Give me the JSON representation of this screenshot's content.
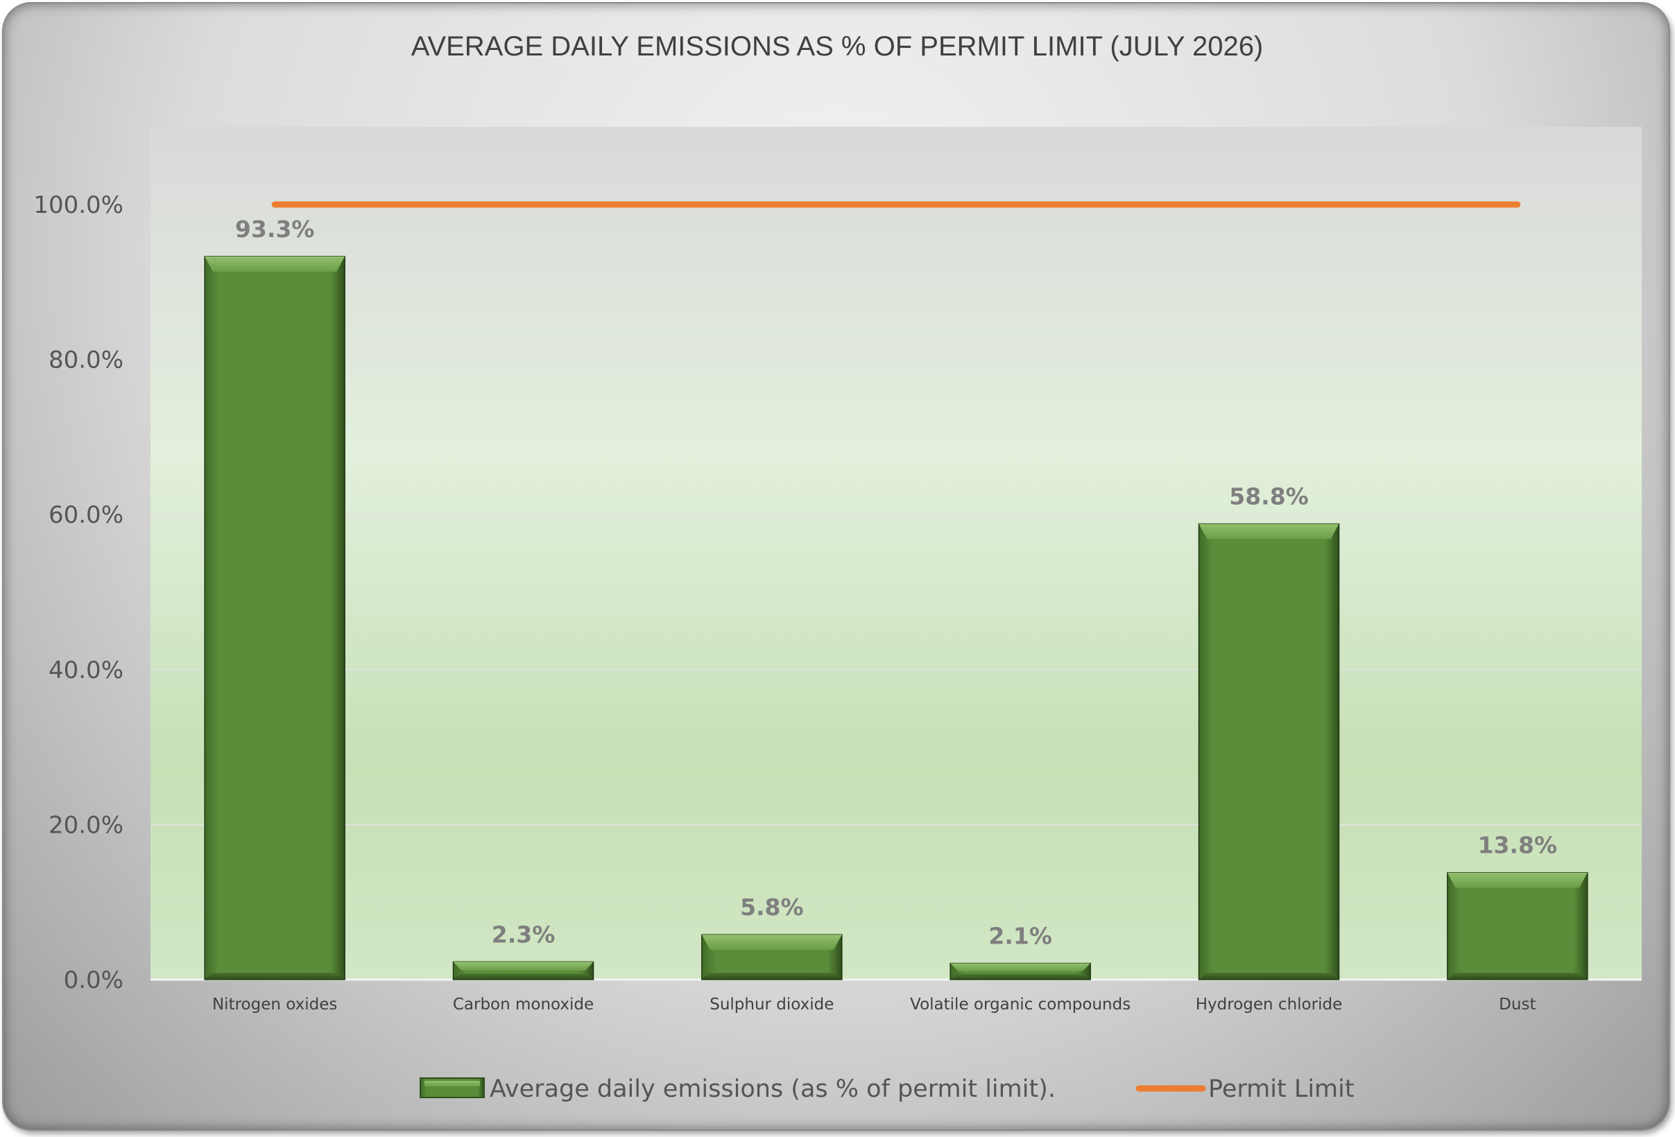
{
  "chart_data": {
    "type": "bar",
    "title": "AVERAGE DAILY EMISSIONS AS % OF PERMIT LIMIT (JULY 2026)",
    "categories": [
      "Nitrogen oxides",
      "Carbon monoxide",
      "Sulphur dioxide",
      "Volatile organic compounds",
      "Hydrogen chloride",
      "Dust"
    ],
    "series": [
      {
        "name": "Average daily emissions (as % of permit limit).",
        "type": "bar",
        "values": [
          93.3,
          2.3,
          5.8,
          2.1,
          58.8,
          13.8
        ],
        "data_labels": [
          "93.3%",
          "2.3%",
          "5.8%",
          "2.1%",
          "58.8%",
          "13.8%"
        ],
        "color": "#5b8c3a"
      },
      {
        "name": "Permit Limit",
        "type": "line",
        "values": [
          100,
          100,
          100,
          100,
          100,
          100
        ],
        "color": "#ed7d31"
      }
    ],
    "y_ticks": [
      "0.0%",
      "20.0%",
      "40.0%",
      "60.0%",
      "80.0%",
      "100.0%"
    ],
    "y_tick_values": [
      0,
      20,
      40,
      60,
      80,
      100
    ],
    "ylim": [
      0,
      110
    ],
    "grid": true,
    "legend_position": "bottom",
    "background_colors": {
      "plot_top": "#dcdcdc",
      "plot_mid": "#e4f0de",
      "plot_bottom": "#c9e2b9",
      "frame": "#d9d9d9"
    }
  }
}
